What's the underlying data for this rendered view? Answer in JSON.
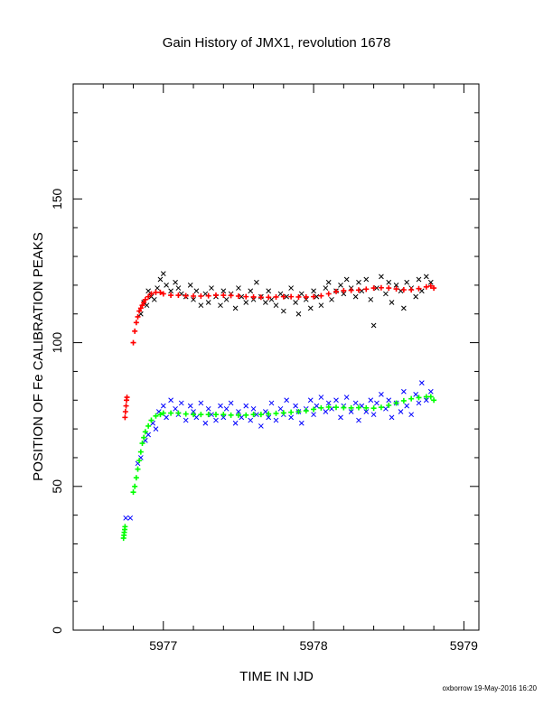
{
  "chart_data": {
    "type": "scatter",
    "title": "Gain History of JMX1, revolution 1678",
    "xlabel": "TIME IN IJD",
    "ylabel": "POSITION OF Fe CALIBRATION PEAKS",
    "xlim": [
      5976.4,
      5979.1
    ],
    "ylim": [
      0,
      190
    ],
    "xticks": [
      5977,
      5978,
      5979
    ],
    "yticks": [
      0,
      50,
      100,
      150
    ],
    "grid": false,
    "series": [
      {
        "marker": "x",
        "color": "#000000",
        "points": [
          [
            5976.85,
            110
          ],
          [
            5976.87,
            114
          ],
          [
            5976.89,
            113
          ],
          [
            5976.9,
            118
          ],
          [
            5976.92,
            116
          ],
          [
            5976.94,
            115
          ],
          [
            5976.96,
            119
          ],
          [
            5976.98,
            122
          ],
          [
            5977.0,
            124
          ],
          [
            5977.02,
            120
          ],
          [
            5977.05,
            118
          ],
          [
            5977.08,
            121
          ],
          [
            5977.1,
            119
          ],
          [
            5977.12,
            117
          ],
          [
            5977.15,
            116
          ],
          [
            5977.18,
            120
          ],
          [
            5977.2,
            115
          ],
          [
            5977.22,
            118
          ],
          [
            5977.25,
            113
          ],
          [
            5977.28,
            117
          ],
          [
            5977.3,
            114
          ],
          [
            5977.32,
            119
          ],
          [
            5977.35,
            116
          ],
          [
            5977.38,
            113
          ],
          [
            5977.4,
            118
          ],
          [
            5977.42,
            115
          ],
          [
            5977.45,
            117
          ],
          [
            5977.48,
            112
          ],
          [
            5977.5,
            119
          ],
          [
            5977.52,
            116
          ],
          [
            5977.55,
            114
          ],
          [
            5977.58,
            118
          ],
          [
            5977.6,
            115
          ],
          [
            5977.62,
            121
          ],
          [
            5977.65,
            116
          ],
          [
            5977.68,
            114
          ],
          [
            5977.7,
            118
          ],
          [
            5977.72,
            115
          ],
          [
            5977.75,
            113
          ],
          [
            5977.78,
            117
          ],
          [
            5977.8,
            111
          ],
          [
            5977.82,
            116
          ],
          [
            5977.85,
            119
          ],
          [
            5977.88,
            114
          ],
          [
            5977.9,
            110
          ],
          [
            5977.92,
            117
          ],
          [
            5977.95,
            115
          ],
          [
            5977.98,
            112
          ],
          [
            5978.0,
            118
          ],
          [
            5978.02,
            116
          ],
          [
            5978.05,
            113
          ],
          [
            5978.08,
            119
          ],
          [
            5978.1,
            121
          ],
          [
            5978.12,
            115
          ],
          [
            5978.15,
            118
          ],
          [
            5978.18,
            120
          ],
          [
            5978.2,
            117
          ],
          [
            5978.22,
            122
          ],
          [
            5978.25,
            119
          ],
          [
            5978.28,
            116
          ],
          [
            5978.3,
            121
          ],
          [
            5978.32,
            118
          ],
          [
            5978.35,
            122
          ],
          [
            5978.38,
            115
          ],
          [
            5978.4,
            106
          ],
          [
            5978.42,
            119
          ],
          [
            5978.45,
            123
          ],
          [
            5978.48,
            117
          ],
          [
            5978.5,
            121
          ],
          [
            5978.52,
            114
          ],
          [
            5978.55,
            120
          ],
          [
            5978.58,
            118
          ],
          [
            5978.6,
            112
          ],
          [
            5978.62,
            121
          ],
          [
            5978.65,
            119
          ],
          [
            5978.68,
            116
          ],
          [
            5978.7,
            122
          ],
          [
            5978.72,
            118
          ],
          [
            5978.75,
            123
          ],
          [
            5978.78,
            121
          ]
        ]
      },
      {
        "marker": "+",
        "color": "#ff0000",
        "points": [
          [
            5976.745,
            74
          ],
          [
            5976.748,
            76
          ],
          [
            5976.752,
            78
          ],
          [
            5976.755,
            80
          ],
          [
            5976.758,
            81
          ],
          [
            5976.8,
            100
          ],
          [
            5976.81,
            104
          ],
          [
            5976.82,
            107
          ],
          [
            5976.83,
            109
          ],
          [
            5976.84,
            111
          ],
          [
            5976.85,
            112
          ],
          [
            5976.86,
            113
          ],
          [
            5976.87,
            114
          ],
          [
            5976.88,
            115
          ],
          [
            5976.9,
            116
          ],
          [
            5976.92,
            117
          ],
          [
            5976.95,
            117.5
          ],
          [
            5976.98,
            117.5
          ],
          [
            5977.0,
            117
          ],
          [
            5977.05,
            116.5
          ],
          [
            5977.1,
            116.5
          ],
          [
            5977.15,
            116.3
          ],
          [
            5977.2,
            116.2
          ],
          [
            5977.25,
            116.2
          ],
          [
            5977.3,
            116.3
          ],
          [
            5977.35,
            116.5
          ],
          [
            5977.4,
            116.5
          ],
          [
            5977.45,
            116.4
          ],
          [
            5977.5,
            116.2
          ],
          [
            5977.55,
            116
          ],
          [
            5977.6,
            115.9
          ],
          [
            5977.65,
            115.8
          ],
          [
            5977.7,
            115.8
          ],
          [
            5977.75,
            115.9
          ],
          [
            5977.8,
            116
          ],
          [
            5977.85,
            116
          ],
          [
            5977.9,
            115.9
          ],
          [
            5977.95,
            115.9
          ],
          [
            5978.0,
            116
          ],
          [
            5978.05,
            116.3
          ],
          [
            5978.1,
            117
          ],
          [
            5978.15,
            117.8
          ],
          [
            5978.2,
            118.1
          ],
          [
            5978.25,
            118.2
          ],
          [
            5978.3,
            118.3
          ],
          [
            5978.35,
            118.6
          ],
          [
            5978.4,
            119
          ],
          [
            5978.45,
            119.1
          ],
          [
            5978.5,
            119
          ],
          [
            5978.55,
            118.7
          ],
          [
            5978.6,
            118.4
          ],
          [
            5978.65,
            118.4
          ],
          [
            5978.7,
            118.8
          ],
          [
            5978.75,
            119.4
          ],
          [
            5978.78,
            119.7
          ],
          [
            5978.8,
            119
          ]
        ]
      },
      {
        "marker": "x",
        "color": "#0000ff",
        "points": [
          [
            5976.75,
            39
          ],
          [
            5976.78,
            39
          ],
          [
            5976.83,
            58
          ],
          [
            5976.85,
            60
          ],
          [
            5976.88,
            66
          ],
          [
            5976.9,
            68
          ],
          [
            5976.93,
            72
          ],
          [
            5976.95,
            70
          ],
          [
            5976.97,
            76
          ],
          [
            5977.0,
            78
          ],
          [
            5977.02,
            74
          ],
          [
            5977.05,
            80
          ],
          [
            5977.08,
            77
          ],
          [
            5977.1,
            75
          ],
          [
            5977.12,
            79
          ],
          [
            5977.15,
            73
          ],
          [
            5977.18,
            78
          ],
          [
            5977.2,
            76
          ],
          [
            5977.22,
            74
          ],
          [
            5977.25,
            79
          ],
          [
            5977.28,
            72
          ],
          [
            5977.3,
            77
          ],
          [
            5977.32,
            75
          ],
          [
            5977.35,
            73
          ],
          [
            5977.38,
            78
          ],
          [
            5977.4,
            74
          ],
          [
            5977.42,
            77
          ],
          [
            5977.45,
            79
          ],
          [
            5977.48,
            72
          ],
          [
            5977.5,
            76
          ],
          [
            5977.52,
            74
          ],
          [
            5977.55,
            78
          ],
          [
            5977.58,
            73
          ],
          [
            5977.6,
            77
          ],
          [
            5977.62,
            75
          ],
          [
            5977.65,
            71
          ],
          [
            5977.68,
            76
          ],
          [
            5977.7,
            74
          ],
          [
            5977.72,
            79
          ],
          [
            5977.75,
            73
          ],
          [
            5977.78,
            77
          ],
          [
            5977.8,
            75
          ],
          [
            5977.82,
            80
          ],
          [
            5977.85,
            74
          ],
          [
            5977.88,
            78
          ],
          [
            5977.9,
            76
          ],
          [
            5977.92,
            72
          ],
          [
            5977.95,
            77
          ],
          [
            5977.98,
            80
          ],
          [
            5978.0,
            75
          ],
          [
            5978.02,
            78
          ],
          [
            5978.05,
            81
          ],
          [
            5978.08,
            76
          ],
          [
            5978.1,
            79
          ],
          [
            5978.12,
            77
          ],
          [
            5978.15,
            80
          ],
          [
            5978.18,
            74
          ],
          [
            5978.2,
            78
          ],
          [
            5978.22,
            81
          ],
          [
            5978.25,
            76
          ],
          [
            5978.28,
            79
          ],
          [
            5978.3,
            73
          ],
          [
            5978.32,
            78
          ],
          [
            5978.35,
            76
          ],
          [
            5978.38,
            80
          ],
          [
            5978.4,
            75
          ],
          [
            5978.42,
            79
          ],
          [
            5978.45,
            82
          ],
          [
            5978.48,
            77
          ],
          [
            5978.5,
            80
          ],
          [
            5978.52,
            74
          ],
          [
            5978.55,
            79
          ],
          [
            5978.58,
            76
          ],
          [
            5978.6,
            83
          ],
          [
            5978.62,
            78
          ],
          [
            5978.65,
            75
          ],
          [
            5978.68,
            82
          ],
          [
            5978.7,
            79
          ],
          [
            5978.72,
            86
          ],
          [
            5978.75,
            80
          ],
          [
            5978.78,
            83
          ]
        ]
      },
      {
        "marker": "+",
        "color": "#00ff00",
        "points": [
          [
            5976.735,
            32
          ],
          [
            5976.738,
            33
          ],
          [
            5976.74,
            34
          ],
          [
            5976.743,
            35
          ],
          [
            5976.745,
            36
          ],
          [
            5976.8,
            48
          ],
          [
            5976.81,
            50
          ],
          [
            5976.82,
            53
          ],
          [
            5976.83,
            56
          ],
          [
            5976.84,
            59
          ],
          [
            5976.85,
            62
          ],
          [
            5976.86,
            65
          ],
          [
            5976.87,
            67
          ],
          [
            5976.88,
            69
          ],
          [
            5976.9,
            71
          ],
          [
            5976.92,
            73
          ],
          [
            5976.95,
            74.5
          ],
          [
            5976.98,
            75
          ],
          [
            5977.0,
            75.5
          ],
          [
            5977.05,
            75.5
          ],
          [
            5977.1,
            75.5
          ],
          [
            5977.15,
            75.2
          ],
          [
            5977.2,
            75
          ],
          [
            5977.25,
            75
          ],
          [
            5977.3,
            75
          ],
          [
            5977.35,
            75
          ],
          [
            5977.4,
            75
          ],
          [
            5977.45,
            74.8
          ],
          [
            5977.5,
            74.8
          ],
          [
            5977.55,
            74.8
          ],
          [
            5977.6,
            75
          ],
          [
            5977.65,
            75
          ],
          [
            5977.7,
            75.2
          ],
          [
            5977.75,
            75.4
          ],
          [
            5977.8,
            75.6
          ],
          [
            5977.85,
            75.8
          ],
          [
            5977.9,
            76
          ],
          [
            5977.95,
            76.3
          ],
          [
            5978.0,
            76.8
          ],
          [
            5978.05,
            77.3
          ],
          [
            5978.1,
            77.6
          ],
          [
            5978.15,
            77.5
          ],
          [
            5978.2,
            77.4
          ],
          [
            5978.25,
            77.3
          ],
          [
            5978.3,
            77.4
          ],
          [
            5978.35,
            77.3
          ],
          [
            5978.4,
            77.2
          ],
          [
            5978.45,
            77.5
          ],
          [
            5978.5,
            78.2
          ],
          [
            5978.55,
            79
          ],
          [
            5978.6,
            79.8
          ],
          [
            5978.65,
            80.5
          ],
          [
            5978.7,
            80.9
          ],
          [
            5978.75,
            81.2
          ],
          [
            5978.78,
            81.2
          ],
          [
            5978.8,
            80
          ]
        ]
      }
    ]
  },
  "footer": {
    "credit": "oxborrow 19-May-2016 16:20"
  }
}
